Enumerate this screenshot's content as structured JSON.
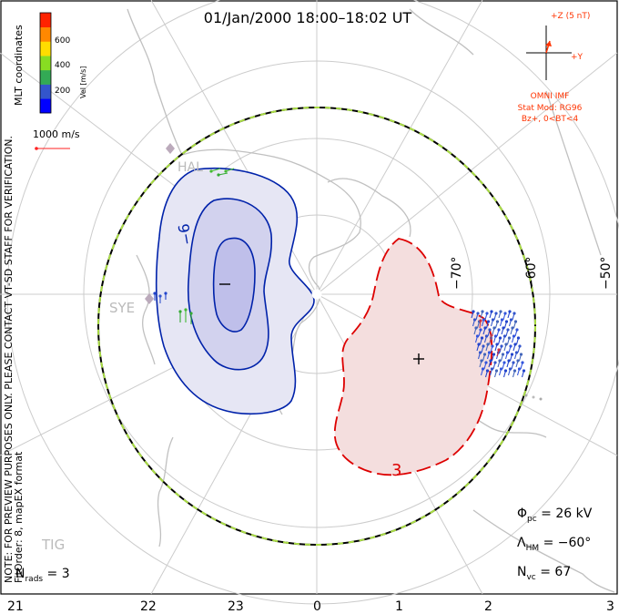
{
  "title": "01/Jan/2000 18:00–18:02 UT",
  "side_note": "NOTE: FOR PREVIEW PURPOSES ONLY. PLEASE CONTACT VT-SD STAFF FOR VERIFICATION.",
  "coord_label": "MLT coordinates",
  "fit_note": "FitOrder: 8, mapEX format",
  "colorbar": {
    "label": "Vel [m/s]",
    "ticks": [
      "600",
      "400",
      "200"
    ],
    "colors": [
      "#0000ff",
      "#3355cc",
      "#33aa55",
      "#88dd22",
      "#ffdd00",
      "#ff8800",
      "#ff2200"
    ]
  },
  "ref_vector": {
    "label": "1000 m/s",
    "color": "#ff2222"
  },
  "imf": {
    "axis_z": "+Z (5 nT)",
    "axis_y": "+Y",
    "source": "OMNI IMF",
    "model": "Stat Mod: RG96",
    "condition": "Bz+, 0<BT<4",
    "color": "#ff3300"
  },
  "stations": [
    "HAL",
    "SYE",
    "TIG"
  ],
  "lat_labels": [
    "−70°",
    "−60°",
    "−50°"
  ],
  "mlt_labels": [
    "21",
    "22",
    "23",
    "0",
    "1",
    "2",
    "3"
  ],
  "contours": {
    "negative_label": "−6",
    "positive_label": "3",
    "negative_color": "#0022aa",
    "positive_color": "#dd0000",
    "negative_fill": "#e6e6f4",
    "positive_fill": "#f4dede"
  },
  "stats": {
    "phi_pc": "26 kV",
    "lambda_hm": "−60°",
    "n_vc": "67",
    "n_rads": "3"
  }
}
